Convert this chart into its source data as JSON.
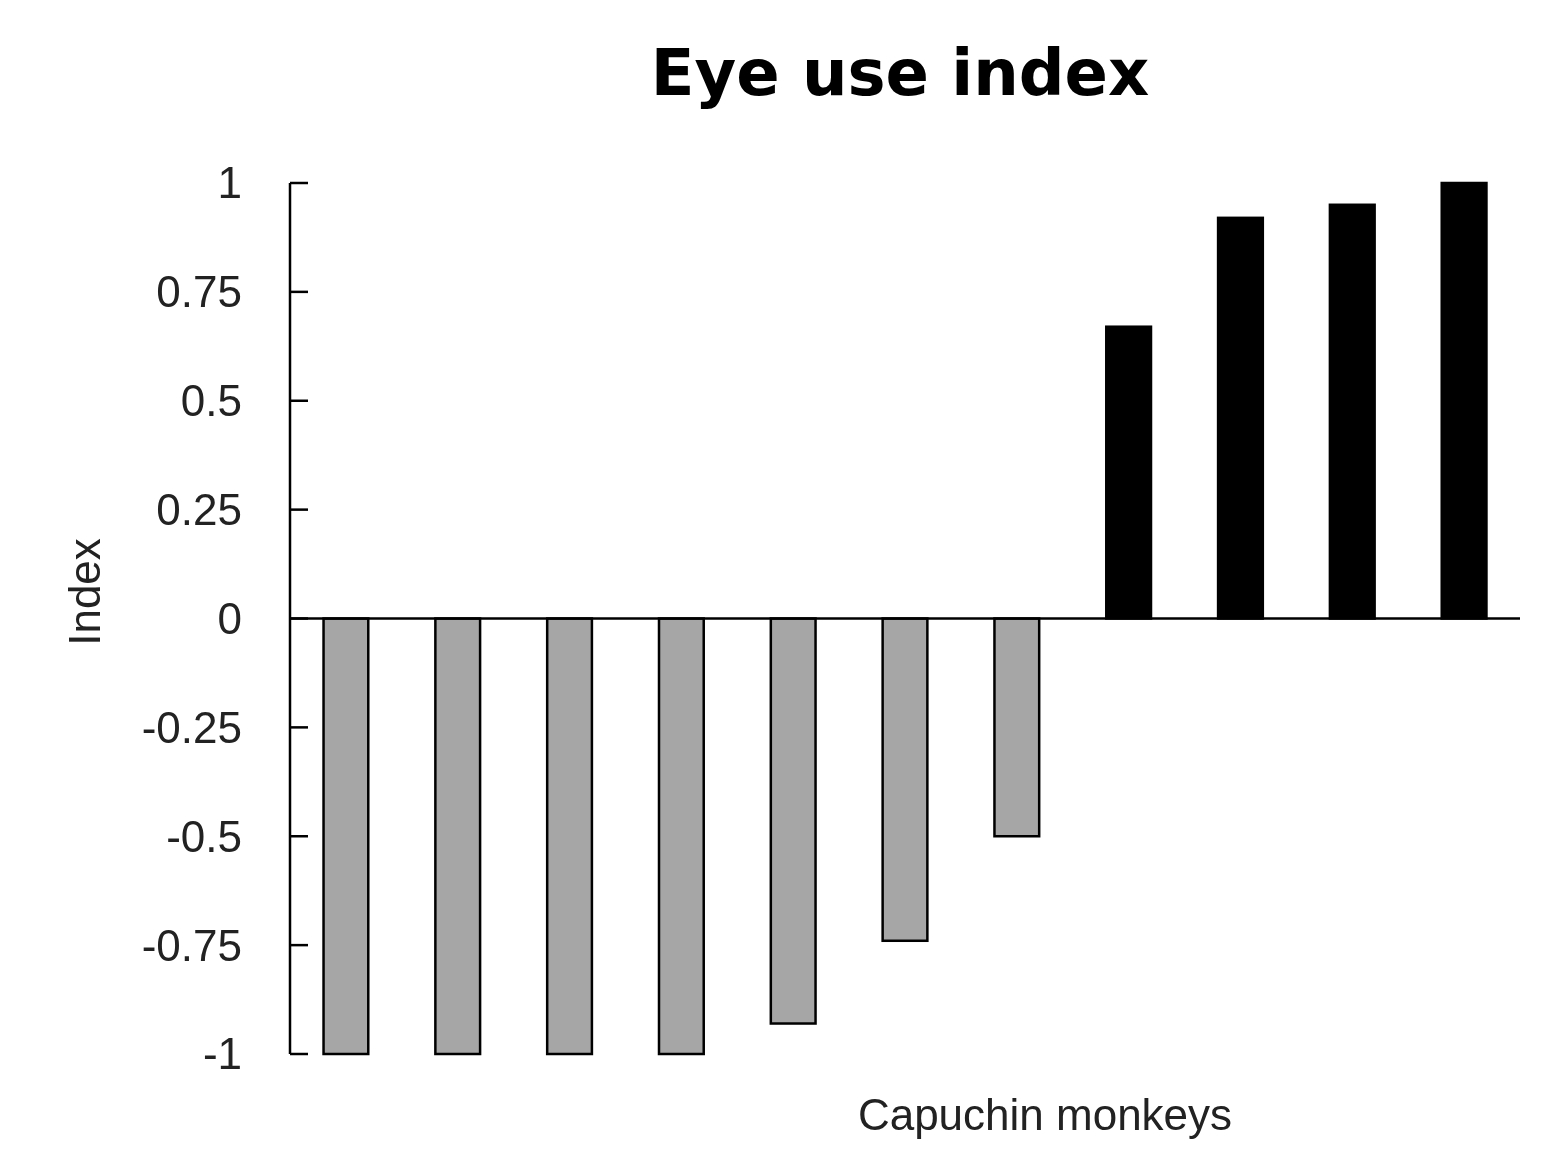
{
  "chart_data": {
    "type": "bar",
    "title": "Eye use index",
    "xlabel": "Capuchin monkeys",
    "ylabel": "Index",
    "categories": [
      null,
      null,
      null,
      null,
      null,
      null,
      null,
      null,
      null,
      null,
      null
    ],
    "values": [
      -1,
      -1,
      -1,
      -1,
      -0.93,
      -0.74,
      -0.5,
      0.67,
      0.92,
      0.95,
      1
    ],
    "colors": [
      "#a6a6a6",
      "#a6a6a6",
      "#a6a6a6",
      "#a6a6a6",
      "#a6a6a6",
      "#a6a6a6",
      "#a6a6a6",
      "#000000",
      "#000000",
      "#000000",
      "#000000"
    ],
    "ylim": [
      -1,
      1
    ],
    "yticks": [
      -1,
      -0.75,
      -0.5,
      -0.25,
      0,
      0.25,
      0.5,
      0.75,
      1
    ]
  }
}
